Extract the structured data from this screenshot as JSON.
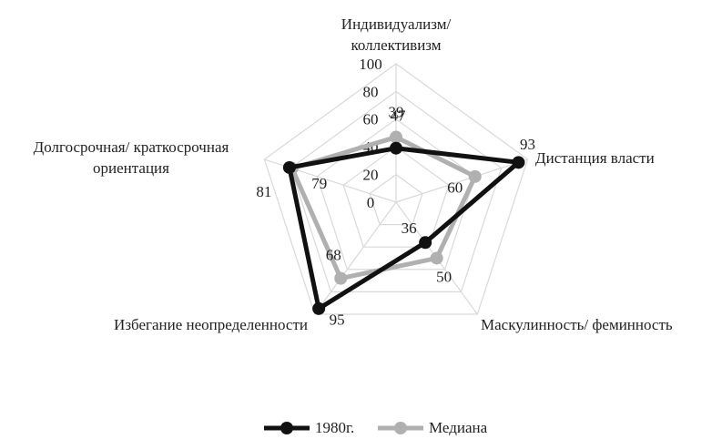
{
  "chart_data": {
    "type": "radar",
    "categories": [
      [
        "Индивидуализм/",
        "коллективизм"
      ],
      [
        "Дистанция власти"
      ],
      [
        "Маскулинность/ феминность"
      ],
      [
        "Избегание неопределенности"
      ],
      [
        "Долгосрочная/ краткосрочная",
        "ориентация"
      ]
    ],
    "ylim": [
      0,
      100
    ],
    "yticks": [
      0,
      20,
      40,
      60,
      80,
      100
    ],
    "grid": true,
    "series": [
      {
        "name": "1980г.",
        "color": "#111111",
        "values": [
          39,
          93,
          36,
          95,
          81
        ]
      },
      {
        "name": "Медиана",
        "color": "#b0b0b0",
        "values": [
          47,
          60,
          50,
          68,
          79
        ]
      }
    ]
  }
}
